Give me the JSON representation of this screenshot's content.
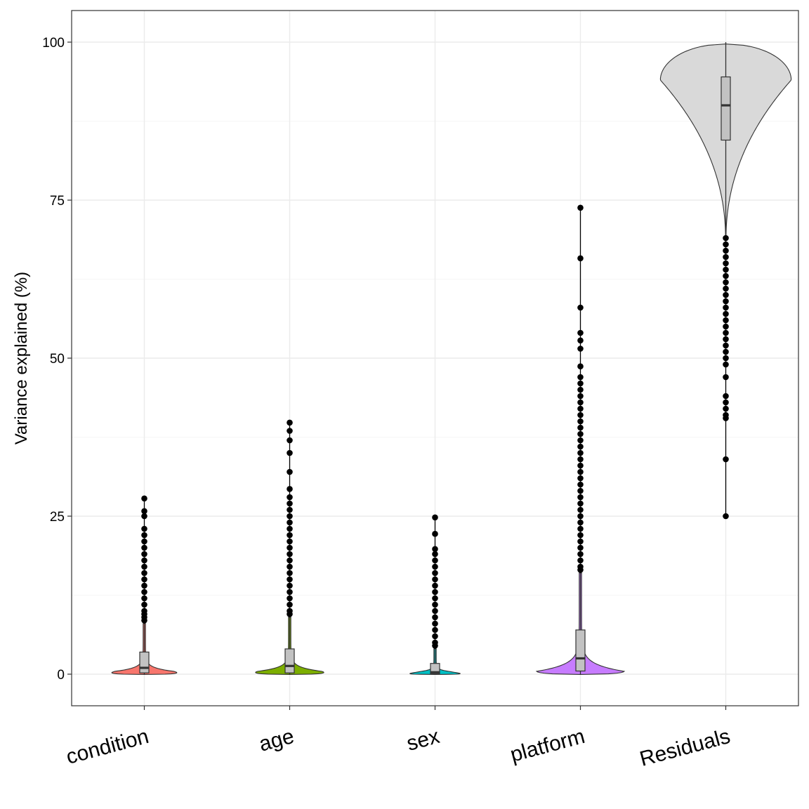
{
  "chart_data": {
    "type": "violin",
    "title": "",
    "xlabel": "",
    "ylabel": "Variance explained (%)",
    "ylim": [
      -5,
      105
    ],
    "y_ticks": [
      0,
      25,
      50,
      75,
      100
    ],
    "grid": true,
    "legend": "none",
    "categories": [
      "condition",
      "age",
      "sex",
      "platform",
      "Residuals"
    ],
    "series": [
      {
        "name": "condition",
        "color": "#F8766D",
        "box": {
          "q1": 0.2,
          "median": 1.0,
          "q3": 3.5,
          "whisker_low": 0,
          "whisker_high": 8
        },
        "density_max_y": 8,
        "outlier_top": 27.8,
        "outliers": [
          8.5,
          9,
          9.5,
          10,
          11,
          12,
          13,
          14,
          15,
          16,
          17,
          18,
          19,
          20,
          21,
          22,
          23,
          25,
          25.8,
          27.8
        ]
      },
      {
        "name": "age",
        "color": "#7CAE00",
        "box": {
          "q1": 0.2,
          "median": 1.3,
          "q3": 4.0,
          "whisker_low": 0,
          "whisker_high": 9
        },
        "density_max_y": 9,
        "outlier_top": 39.8,
        "outliers": [
          9.5,
          10,
          11,
          12,
          13,
          14,
          15,
          16,
          17,
          18,
          19,
          20,
          21,
          22,
          23,
          24,
          25,
          26,
          27,
          28,
          29.3,
          32,
          35,
          37,
          38.5,
          39.8
        ]
      },
      {
        "name": "sex",
        "color": "#00BFC4",
        "box": {
          "q1": 0.05,
          "median": 0.3,
          "q3": 1.7,
          "whisker_low": 0,
          "whisker_high": 4
        },
        "density_max_y": 4,
        "outlier_top": 24.8,
        "outliers": [
          4.5,
          5,
          6,
          7,
          8,
          9,
          10,
          11,
          12,
          13,
          14,
          15,
          16,
          17,
          18,
          19,
          19.8,
          22.2,
          24.8
        ]
      },
      {
        "name": "platform",
        "color": "#C77CFF",
        "box": {
          "q1": 0.5,
          "median": 2.5,
          "q3": 7.0,
          "whisker_low": 0,
          "whisker_high": 16
        },
        "density_max_y": 16,
        "outlier_top": 73.8,
        "outliers": [
          16.5,
          17,
          18,
          19,
          20,
          21,
          22,
          23,
          24,
          25,
          26,
          27,
          28,
          29,
          30,
          31,
          32,
          33,
          34,
          35,
          36,
          37,
          38,
          39,
          40,
          41,
          42,
          43,
          44,
          45,
          46,
          47,
          48.7,
          51.5,
          52.8,
          54,
          58,
          65.8,
          73.8
        ]
      },
      {
        "name": "Residuals",
        "color": "#D9D9D9",
        "box": {
          "q1": 84.5,
          "median": 90.0,
          "q3": 94.5,
          "whisker_low": 70,
          "whisker_high": 100
        },
        "density_min_y": 69,
        "outlier_bottom": 25.0,
        "outliers": [
          69,
          68,
          67,
          66,
          65,
          64,
          63,
          62,
          61,
          60,
          59,
          58,
          57,
          56,
          55,
          54,
          53,
          52,
          51,
          50,
          49,
          47,
          44,
          43,
          42,
          41,
          40.5,
          34,
          25
        ]
      }
    ]
  }
}
